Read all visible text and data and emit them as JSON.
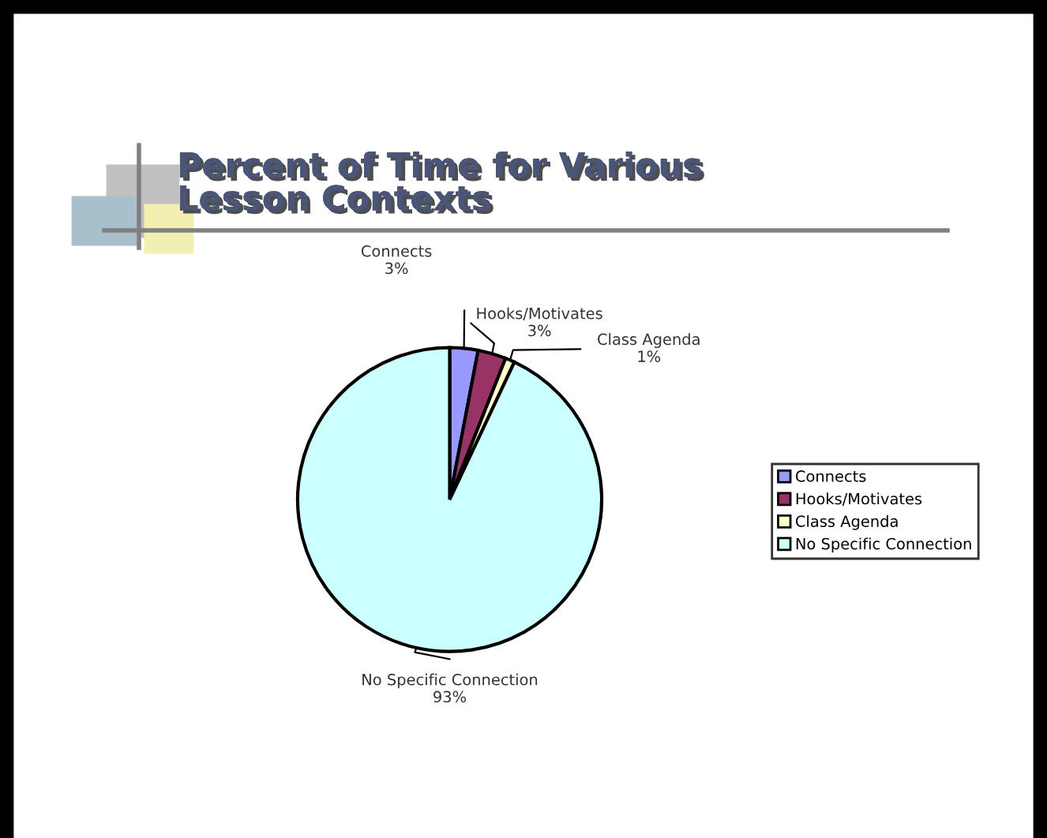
{
  "chart_data": {
    "type": "pie",
    "title": "Percent of Time for Various\nLesson Contexts",
    "categories": [
      "Connects",
      "Hooks/Motivates",
      "Class Agenda",
      "No Specific Connection"
    ],
    "values": [
      3,
      3,
      1,
      93
    ],
    "colors": [
      "#9999ff",
      "#993366",
      "#ffffcc",
      "#ccffff"
    ],
    "value_labels": [
      "3%",
      "3%",
      "1%",
      "93%"
    ],
    "legend": "right"
  }
}
